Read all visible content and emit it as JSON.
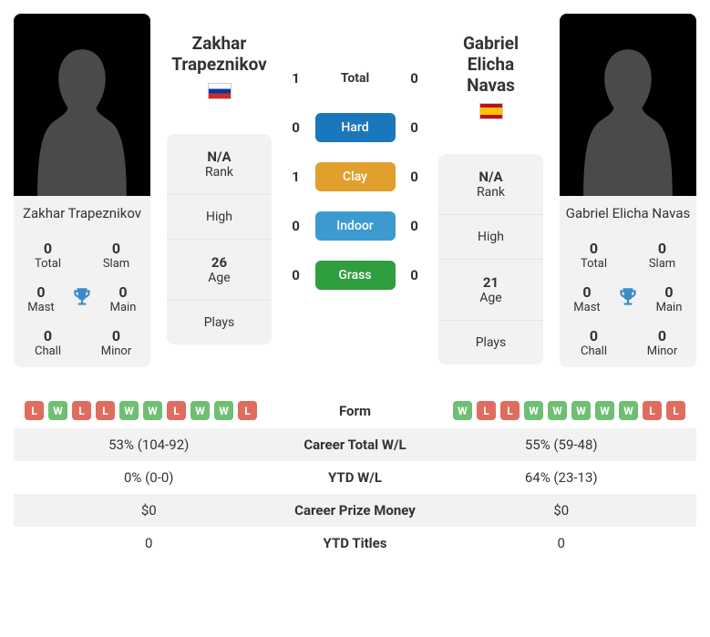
{
  "player1": {
    "name": "Zakhar Trapeznikov",
    "name_first": "Zakhar",
    "name_last": "Trapeznikov",
    "flag_colors": [
      "#ffffff",
      "#0039a6",
      "#d52b1e"
    ],
    "titles": {
      "total": "0",
      "slam": "0",
      "mast": "0",
      "main": "0",
      "chall": "0",
      "minor": "0"
    },
    "rank": "N/A",
    "high": "",
    "age": "26",
    "plays": ""
  },
  "player2": {
    "name": "Gabriel Elicha Navas",
    "name_first": "Gabriel Elicha",
    "name_last": "Navas",
    "flag_type": "spain",
    "titles": {
      "total": "0",
      "slam": "0",
      "mast": "0",
      "main": "0",
      "chall": "0",
      "minor": "0"
    },
    "rank": "N/A",
    "high": "",
    "age": "21",
    "plays": ""
  },
  "labels": {
    "total": "Total",
    "slam": "Slam",
    "mast": "Mast",
    "main": "Main",
    "chall": "Chall",
    "minor": "Minor",
    "rank": "Rank",
    "high": "High",
    "age": "Age",
    "plays": "Plays"
  },
  "h2h": {
    "rows": [
      {
        "l": "1",
        "label": "Total",
        "r": "0",
        "color": "",
        "text_color": "#333"
      },
      {
        "l": "0",
        "label": "Hard",
        "r": "0",
        "color": "#1b77bb"
      },
      {
        "l": "1",
        "label": "Clay",
        "r": "0",
        "color": "#e0a02e"
      },
      {
        "l": "0",
        "label": "Indoor",
        "r": "0",
        "color": "#3d9ad1"
      },
      {
        "l": "0",
        "label": "Grass",
        "r": "0",
        "color": "#2e9e3f"
      }
    ]
  },
  "bottom": [
    {
      "label": "Form",
      "type": "form"
    },
    {
      "label": "Career Total W/L",
      "l": "53% (104-92)",
      "r": "55% (59-48)"
    },
    {
      "label": "YTD W/L",
      "l": "0% (0-0)",
      "r": "64% (23-13)"
    },
    {
      "label": "Career Prize Money",
      "l": "$0",
      "r": "$0"
    },
    {
      "label": "YTD Titles",
      "l": "0",
      "r": "0"
    }
  ],
  "form": {
    "p1": [
      "L",
      "W",
      "L",
      "L",
      "W",
      "W",
      "L",
      "W",
      "W",
      "L"
    ],
    "p2": [
      "W",
      "L",
      "L",
      "W",
      "W",
      "W",
      "W",
      "W",
      "L",
      "L"
    ]
  },
  "silhouette_color": "#4a4a4a"
}
